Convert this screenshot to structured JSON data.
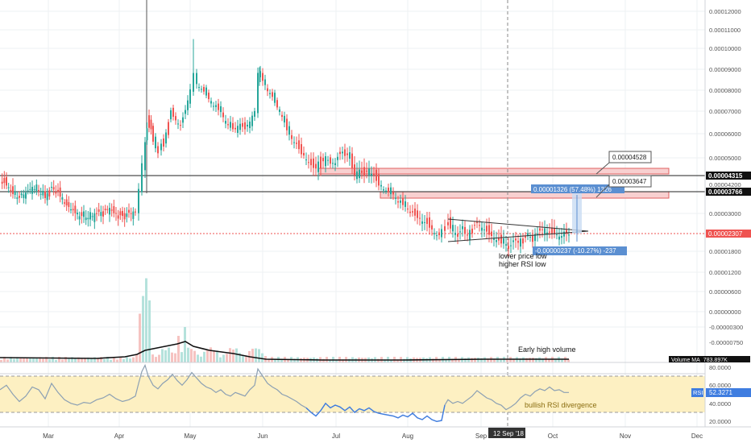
{
  "chart_data": [
    {
      "type": "candlestick",
      "panel": "price",
      "y_axis_ticks": [
        "0.00012000",
        "0.00011000",
        "0.00010000",
        "0.00009000",
        "0.00008000",
        "0.00007000",
        "0.00006000",
        "0.00005000",
        "0.00004200",
        "0.00003000",
        "0.00001800",
        "0.00001200",
        "0.00000600",
        "0.00000000",
        "-0.00000300",
        "-0.00000750"
      ],
      "ylim": [
        -7.5e-06,
        0.00012
      ],
      "x_tick_labels": [
        "Mar",
        "Apr",
        "May",
        "Jun",
        "Jul",
        "Aug",
        "Sep",
        "Oct",
        "Nov",
        "Dec"
      ],
      "crosshair_date": "12 Sep '18",
      "price_levels": [
        {
          "label": "0.00004315",
          "value": 4.315e-05,
          "style": "horizontal-line"
        },
        {
          "label": "0.00003766",
          "value": 3.766e-05,
          "style": "horizontal-line"
        },
        {
          "label": "0.00002307",
          "value": 2.307e-05,
          "style": "last-price"
        }
      ],
      "resistance_zones": [
        {
          "from": 4.3e-05,
          "to": 4.44e-05
        },
        {
          "from": 3.7e-05,
          "to": 3.83e-05
        }
      ],
      "callouts": [
        {
          "text": "0.00004528",
          "value": 4.528e-05
        },
        {
          "text": "0.00003647",
          "value": 3.647e-05
        }
      ],
      "measures": [
        {
          "text": "0.00001326 (57.48%) 1326",
          "direction": "up"
        },
        {
          "text": "-0.00000237 (-10.27%) -237",
          "direction": "down"
        }
      ],
      "annotations": [
        "lower price low",
        "higher RSI low"
      ],
      "close_path": [
        [
          0,
          4.4e-05
        ],
        [
          8,
          4.2e-05
        ],
        [
          16,
          3.85e-05
        ],
        [
          24,
          3.65e-05
        ],
        [
          32,
          3.82e-05
        ],
        [
          40,
          4.05e-05
        ],
        [
          48,
          3.95e-05
        ],
        [
          56,
          3.68e-05
        ],
        [
          64,
          4.05e-05
        ],
        [
          72,
          3.9e-05
        ],
        [
          80,
          3.45e-05
        ],
        [
          88,
          3.22e-05
        ],
        [
          96,
          2.98e-05
        ],
        [
          104,
          2.93e-05
        ],
        [
          112,
          2.86e-05
        ],
        [
          120,
          3e-05
        ],
        [
          128,
          3.05e-05
        ],
        [
          136,
          3.18e-05
        ],
        [
          144,
          3e-05
        ],
        [
          152,
          2.96e-05
        ],
        [
          160,
          2.98e-05
        ],
        [
          168,
          3.05e-05
        ],
        [
          172,
          4e-05
        ],
        [
          176,
          4.8e-05
        ],
        [
          180,
          5.6e-05
        ],
        [
          185,
          6.8e-05
        ],
        [
          190,
          5.7e-05
        ],
        [
          196,
          5.2e-05
        ],
        [
          200,
          5.55e-05
        ],
        [
          206,
          6e-05
        ],
        [
          212,
          7e-05
        ],
        [
          218,
          6.6e-05
        ],
        [
          224,
          6.4e-05
        ],
        [
          230,
          7e-05
        ],
        [
          236,
          8e-05
        ],
        [
          240,
          8.8e-05
        ],
        [
          244,
          8.3e-05
        ],
        [
          250,
          8.1e-05
        ],
        [
          256,
          7.8e-05
        ],
        [
          262,
          7.4e-05
        ],
        [
          268,
          7.2e-05
        ],
        [
          274,
          7e-05
        ],
        [
          280,
          6.5e-05
        ],
        [
          286,
          6.3e-05
        ],
        [
          292,
          6.2e-05
        ],
        [
          298,
          6.4e-05
        ],
        [
          304,
          6.25e-05
        ],
        [
          310,
          6.5e-05
        ],
        [
          316,
          7e-05
        ],
        [
          320,
          8.8e-05
        ],
        [
          326,
          8.5e-05
        ],
        [
          332,
          8e-05
        ],
        [
          338,
          7.7e-05
        ],
        [
          344,
          7.2e-05
        ],
        [
          350,
          6.8e-05
        ],
        [
          356,
          6.2e-05
        ],
        [
          362,
          5.8e-05
        ],
        [
          368,
          5.6e-05
        ],
        [
          374,
          5.2e-05
        ],
        [
          380,
          5e-05
        ],
        [
          386,
          4.8e-05
        ],
        [
          392,
          4.7e-05
        ],
        [
          398,
          5e-05
        ],
        [
          404,
          4.8e-05
        ],
        [
          410,
          5e-05
        ],
        [
          416,
          4.8e-05
        ],
        [
          422,
          5.2e-05
        ],
        [
          428,
          5.3e-05
        ],
        [
          434,
          5e-05
        ],
        [
          440,
          4.5e-05
        ],
        [
          446,
          4.6e-05
        ],
        [
          452,
          4.5e-05
        ],
        [
          458,
          4.65e-05
        ],
        [
          464,
          4.5e-05
        ],
        [
          470,
          4.2e-05
        ],
        [
          476,
          4.05e-05
        ],
        [
          482,
          3.9e-05
        ],
        [
          488,
          3.8e-05
        ],
        [
          494,
          3.5e-05
        ],
        [
          500,
          3.4e-05
        ],
        [
          506,
          3.2e-05
        ],
        [
          512,
          3.05e-05
        ],
        [
          518,
          2.9e-05
        ],
        [
          524,
          2.8e-05
        ],
        [
          530,
          2.7e-05
        ],
        [
          536,
          2.5e-05
        ],
        [
          542,
          2.35e-05
        ],
        [
          548,
          2.3e-05
        ],
        [
          552,
          2.55e-05
        ],
        [
          556,
          2.7e-05
        ],
        [
          562,
          2.45e-05
        ],
        [
          568,
          2.4e-05
        ],
        [
          574,
          2.45e-05
        ],
        [
          580,
          2.35e-05
        ],
        [
          586,
          2.5e-05
        ],
        [
          592,
          2.65e-05
        ],
        [
          598,
          2.6e-05
        ],
        [
          604,
          2.45e-05
        ],
        [
          610,
          2.3e-05
        ],
        [
          616,
          2.2e-05
        ],
        [
          622,
          2.1e-05
        ],
        [
          628,
          2.05e-05
        ],
        [
          634,
          2e-05
        ],
        [
          640,
          2.1e-05
        ],
        [
          646,
          2.15e-05
        ],
        [
          652,
          2.2e-05
        ],
        [
          658,
          2.25e-05
        ],
        [
          664,
          2.3e-05
        ],
        [
          670,
          2.4e-05
        ],
        [
          676,
          2.5e-05
        ],
        [
          682,
          2.4e-05
        ],
        [
          688,
          2.38e-05
        ],
        [
          694,
          2.32e-05
        ],
        [
          700,
          2.3e-05
        ],
        [
          706,
          2.31e-05
        ]
      ]
    },
    {
      "type": "bar",
      "panel": "volume",
      "legend": "Volume MA",
      "legend_value": "783.897K",
      "annotation": "Early high volume",
      "ma_path": [
        [
          0,
          444
        ],
        [
          120,
          445
        ],
        [
          155,
          443
        ],
        [
          170,
          440
        ],
        [
          180,
          435
        ],
        [
          200,
          431
        ],
        [
          220,
          427
        ],
        [
          230,
          424
        ],
        [
          240,
          430
        ],
        [
          260,
          435
        ],
        [
          290,
          439
        ],
        [
          310,
          443
        ],
        [
          330,
          446
        ],
        [
          400,
          447
        ],
        [
          500,
          447
        ],
        [
          600,
          446
        ],
        [
          706,
          446
        ]
      ],
      "spikes": [
        [
          172,
          0.55
        ],
        [
          176,
          0.75
        ],
        [
          180,
          0.95
        ],
        [
          184,
          0.7
        ],
        [
          220,
          0.3
        ],
        [
          228,
          0.4
        ]
      ]
    },
    {
      "type": "line",
      "panel": "rsi",
      "label": "RSI",
      "current_value": "52.3271",
      "y_axis_ticks": [
        "80.0000",
        "60.0000",
        "40.0000",
        "20.0000"
      ],
      "ylim": [
        14,
        86
      ],
      "bands": [
        30,
        70
      ],
      "annotation": "bullish RSI divergence",
      "points": [
        [
          0,
          55
        ],
        [
          8,
          60
        ],
        [
          16,
          50
        ],
        [
          24,
          42
        ],
        [
          32,
          48
        ],
        [
          40,
          58
        ],
        [
          48,
          55
        ],
        [
          56,
          45
        ],
        [
          64,
          62
        ],
        [
          72,
          52
        ],
        [
          80,
          44
        ],
        [
          88,
          40
        ],
        [
          96,
          38
        ],
        [
          104,
          41
        ],
        [
          112,
          40
        ],
        [
          120,
          44
        ],
        [
          128,
          46
        ],
        [
          136,
          50
        ],
        [
          144,
          45
        ],
        [
          152,
          42
        ],
        [
          160,
          44
        ],
        [
          168,
          48
        ],
        [
          172,
          62
        ],
        [
          176,
          75
        ],
        [
          180,
          82
        ],
        [
          184,
          70
        ],
        [
          190,
          60
        ],
        [
          196,
          56
        ],
        [
          202,
          62
        ],
        [
          208,
          66
        ],
        [
          214,
          72
        ],
        [
          220,
          65
        ],
        [
          226,
          60
        ],
        [
          232,
          66
        ],
        [
          238,
          74
        ],
        [
          244,
          68
        ],
        [
          250,
          62
        ],
        [
          256,
          58
        ],
        [
          262,
          56
        ],
        [
          268,
          52
        ],
        [
          274,
          55
        ],
        [
          280,
          50
        ],
        [
          286,
          48
        ],
        [
          292,
          52
        ],
        [
          298,
          50
        ],
        [
          304,
          48
        ],
        [
          310,
          55
        ],
        [
          316,
          60
        ],
        [
          320,
          78
        ],
        [
          326,
          70
        ],
        [
          332,
          62
        ],
        [
          338,
          58
        ],
        [
          344,
          55
        ],
        [
          350,
          50
        ],
        [
          356,
          48
        ],
        [
          362,
          45
        ],
        [
          368,
          42
        ],
        [
          374,
          38
        ],
        [
          380,
          35
        ],
        [
          386,
          30
        ],
        [
          392,
          26
        ],
        [
          398,
          32
        ],
        [
          404,
          40
        ],
        [
          410,
          35
        ],
        [
          416,
          38
        ],
        [
          422,
          36
        ],
        [
          428,
          32
        ],
        [
          434,
          36
        ],
        [
          440,
          30
        ],
        [
          446,
          34
        ],
        [
          452,
          32
        ],
        [
          458,
          35
        ],
        [
          464,
          31
        ],
        [
          470,
          29
        ],
        [
          476,
          28
        ],
        [
          482,
          27
        ],
        [
          488,
          26
        ],
        [
          494,
          24
        ],
        [
          500,
          27
        ],
        [
          506,
          25
        ],
        [
          512,
          29
        ],
        [
          518,
          24
        ],
        [
          524,
          22
        ],
        [
          530,
          26
        ],
        [
          536,
          22
        ],
        [
          542,
          20
        ],
        [
          548,
          21
        ],
        [
          552,
          38
        ],
        [
          556,
          44
        ],
        [
          562,
          40
        ],
        [
          568,
          42
        ],
        [
          574,
          40
        ],
        [
          580,
          44
        ],
        [
          586,
          48
        ],
        [
          592,
          54
        ],
        [
          598,
          50
        ],
        [
          604,
          46
        ],
        [
          610,
          44
        ],
        [
          616,
          40
        ],
        [
          622,
          38
        ],
        [
          628,
          33
        ],
        [
          634,
          36
        ],
        [
          640,
          40
        ],
        [
          646,
          46
        ],
        [
          652,
          50
        ],
        [
          658,
          48
        ],
        [
          664,
          53
        ],
        [
          670,
          56
        ],
        [
          676,
          54
        ],
        [
          682,
          58
        ],
        [
          688,
          54
        ],
        [
          694,
          55
        ],
        [
          700,
          52
        ],
        [
          706,
          52
        ]
      ]
    }
  ],
  "colors": {
    "up": "#26a69a",
    "down": "#ef5350",
    "zone_fill": "#f8d0d0",
    "zone_stroke": "#e06060",
    "rsi_band": "#fdf0c2",
    "rsi_line": "#8ca0b3",
    "rsi_oversold": "#3f7de0",
    "measure": "#5b8fd1"
  }
}
